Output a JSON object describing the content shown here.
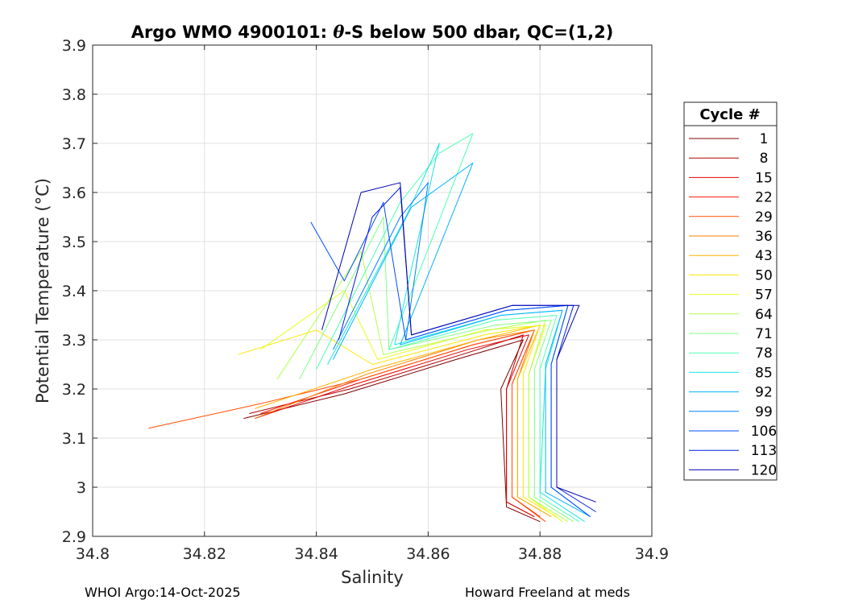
{
  "chart_data": {
    "type": "line",
    "title": "Argo WMO 4900101: θ-S below 500 dbar,  QC=(1,2)",
    "title_parts": {
      "a": "Argo WMO 4900101: ",
      "theta": "θ",
      "b": "-S below 500 dbar,  QC=(1,2)"
    },
    "xlabel": "Salinity",
    "ylabel": "Potential Temperature (°C)",
    "xlim": [
      34.8,
      34.9
    ],
    "ylim": [
      2.9,
      3.9
    ],
    "xticks": [
      "34.8",
      "34.82",
      "34.84",
      "34.86",
      "34.88",
      "34.9"
    ],
    "xtick_values": [
      34.8,
      34.82,
      34.84,
      34.86,
      34.88,
      34.9
    ],
    "yticks": [
      "2.9",
      "3",
      "3.1",
      "3.2",
      "3.3",
      "3.4",
      "3.5",
      "3.6",
      "3.7",
      "3.8",
      "3.9"
    ],
    "ytick_values": [
      2.9,
      3.0,
      3.1,
      3.2,
      3.3,
      3.4,
      3.5,
      3.6,
      3.7,
      3.8,
      3.9
    ],
    "grid": true,
    "legend": {
      "title": "Cycle #",
      "placement": "right-outside",
      "entries": [
        "1",
        "8",
        "15",
        "22",
        "29",
        "36",
        "43",
        "50",
        "57",
        "64",
        "71",
        "78",
        "85",
        "92",
        "99",
        "106",
        "113",
        "120"
      ],
      "colors": [
        "#800000",
        "#b30000",
        "#e60000",
        "#ff1a00",
        "#ff4d00",
        "#ff8000",
        "#ffb300",
        "#ffe600",
        "#e6ff1a",
        "#b3ff4d",
        "#80ff80",
        "#4dffb3",
        "#1ae6e6",
        "#00b3ff",
        "#0080ff",
        "#004dff",
        "#001ae6",
        "#0000b3"
      ]
    },
    "series": [
      {
        "name": "1",
        "color": "#800000",
        "x": [
          34.827,
          34.845,
          34.865,
          34.877,
          34.873,
          34.874,
          34.88
        ],
        "y": [
          3.14,
          3.19,
          3.26,
          3.3,
          3.2,
          2.96,
          2.93
        ]
      },
      {
        "name": "8",
        "color": "#b30000",
        "x": [
          34.828,
          34.846,
          34.866,
          34.877,
          34.874,
          34.874,
          34.879
        ],
        "y": [
          3.15,
          3.2,
          3.27,
          3.31,
          3.2,
          2.97,
          2.94
        ]
      },
      {
        "name": "15",
        "color": "#e60000",
        "x": [
          34.829,
          34.847,
          34.867,
          34.878,
          34.874,
          34.874,
          34.879
        ],
        "y": [
          3.14,
          3.21,
          3.28,
          3.31,
          3.2,
          2.97,
          2.94
        ]
      },
      {
        "name": "22",
        "color": "#ff1a00",
        "x": [
          34.83,
          34.848,
          34.868,
          34.879,
          34.875,
          34.875,
          34.88
        ],
        "y": [
          3.15,
          3.22,
          3.29,
          3.32,
          3.21,
          2.98,
          2.94
        ]
      },
      {
        "name": "29",
        "color": "#ff4d00",
        "x": [
          34.81,
          34.83,
          34.848,
          34.868,
          34.879,
          34.875,
          34.875,
          34.881
        ],
        "y": [
          3.12,
          3.17,
          3.22,
          3.29,
          3.32,
          3.21,
          2.98,
          2.93
        ]
      },
      {
        "name": "36",
        "color": "#ff8000",
        "x": [
          34.829,
          34.849,
          34.869,
          34.879,
          34.876,
          34.876,
          34.882
        ],
        "y": [
          3.14,
          3.23,
          3.3,
          3.32,
          3.22,
          2.98,
          2.94
        ]
      },
      {
        "name": "43",
        "color": "#ffb300",
        "x": [
          34.829,
          34.85,
          34.869,
          34.88,
          34.876,
          34.876,
          34.882
        ],
        "y": [
          3.16,
          3.24,
          3.3,
          3.33,
          3.22,
          2.98,
          2.94
        ]
      },
      {
        "name": "50",
        "color": "#ffe600",
        "x": [
          34.826,
          34.84,
          34.85,
          34.87,
          34.88,
          34.877,
          34.877,
          34.883
        ],
        "y": [
          3.27,
          3.32,
          3.25,
          3.31,
          3.33,
          3.23,
          2.98,
          2.94
        ]
      },
      {
        "name": "57",
        "color": "#e6ff1a",
        "x": [
          34.83,
          34.845,
          34.851,
          34.87,
          34.881,
          34.878,
          34.878,
          34.884
        ],
        "y": [
          3.28,
          3.4,
          3.26,
          3.32,
          3.33,
          3.23,
          2.98,
          2.93
        ]
      },
      {
        "name": "64",
        "color": "#b3ff4d",
        "x": [
          34.833,
          34.848,
          34.852,
          34.871,
          34.881,
          34.878,
          34.878,
          34.885
        ],
        "y": [
          3.22,
          3.48,
          3.27,
          3.32,
          3.34,
          3.23,
          2.98,
          2.93
        ]
      },
      {
        "name": "71",
        "color": "#80ff80",
        "x": [
          34.837,
          34.852,
          34.853,
          34.872,
          34.882,
          34.879,
          34.879,
          34.886
        ],
        "y": [
          3.22,
          3.55,
          3.28,
          3.33,
          3.34,
          3.24,
          2.98,
          2.93
        ]
      },
      {
        "name": "78",
        "color": "#4dffb3",
        "x": [
          34.84,
          34.855,
          34.862,
          34.868,
          34.853,
          34.872,
          34.883,
          34.88,
          34.88,
          34.887
        ],
        "y": [
          3.24,
          3.58,
          3.68,
          3.72,
          3.28,
          3.34,
          3.35,
          3.24,
          2.98,
          2.93
        ]
      },
      {
        "name": "85",
        "color": "#1ae6e6",
        "x": [
          34.842,
          34.856,
          34.862,
          34.854,
          34.873,
          34.884,
          34.881,
          34.88,
          34.888
        ],
        "y": [
          3.25,
          3.55,
          3.7,
          3.29,
          3.35,
          3.36,
          3.24,
          2.99,
          2.93
        ]
      },
      {
        "name": "92",
        "color": "#00b3ff",
        "x": [
          34.843,
          34.857,
          34.868,
          34.855,
          34.873,
          34.884,
          34.881,
          34.881,
          34.889
        ],
        "y": [
          3.26,
          3.57,
          3.66,
          3.29,
          3.35,
          3.36,
          3.25,
          2.99,
          2.94
        ]
      },
      {
        "name": "99",
        "color": "#0080ff",
        "x": [
          34.843,
          34.855,
          34.86,
          34.856,
          34.874,
          34.885,
          34.882,
          34.882,
          34.889
        ],
        "y": [
          3.28,
          3.55,
          3.62,
          3.3,
          3.36,
          3.37,
          3.25,
          3.0,
          2.94
        ]
      },
      {
        "name": "106",
        "color": "#004dff",
        "x": [
          34.839,
          34.845,
          34.852,
          34.856,
          34.874,
          34.885,
          34.882,
          34.882,
          34.889
        ],
        "y": [
          3.54,
          3.42,
          3.58,
          3.3,
          3.36,
          3.37,
          3.25,
          3.0,
          2.94
        ]
      },
      {
        "name": "113",
        "color": "#001ae6",
        "x": [
          34.844,
          34.85,
          34.855,
          34.857,
          34.875,
          34.886,
          34.883,
          34.883,
          34.89
        ],
        "y": [
          3.3,
          3.55,
          3.61,
          3.31,
          3.37,
          3.37,
          3.26,
          3.0,
          2.95
        ]
      },
      {
        "name": "120",
        "color": "#0000b3",
        "x": [
          34.841,
          34.848,
          34.855,
          34.857,
          34.875,
          34.887,
          34.883,
          34.883,
          34.89
        ],
        "y": [
          3.32,
          3.6,
          3.62,
          3.31,
          3.37,
          3.37,
          3.26,
          3.0,
          2.97
        ]
      }
    ]
  },
  "footer": {
    "left": "WHOI Argo:14-Oct-2025",
    "right": "Howard Freeland at meds"
  }
}
